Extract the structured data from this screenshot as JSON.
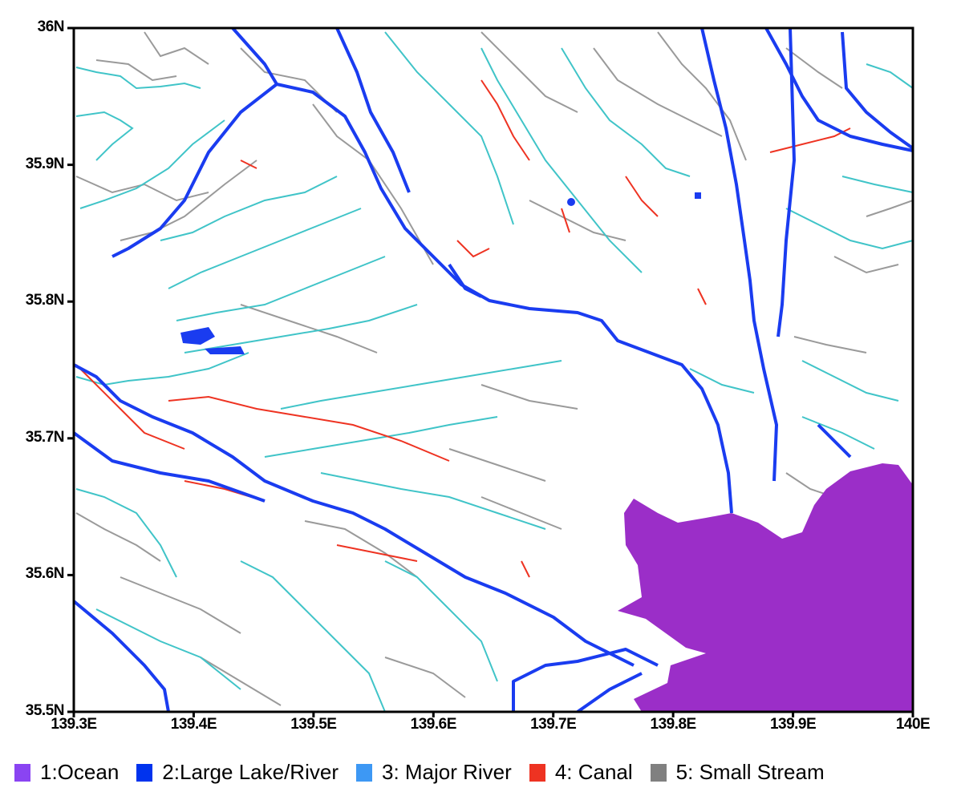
{
  "chart_data": {
    "type": "map",
    "xlim": [
      139.3,
      140.0
    ],
    "ylim": [
      35.5,
      36.0
    ],
    "x_ticks": [
      139.3,
      139.4,
      139.5,
      139.6,
      139.7,
      139.8,
      139.9,
      140.0
    ],
    "x_tick_labels": [
      "139.3E",
      "139.4E",
      "139.5E",
      "139.6E",
      "139.7E",
      "139.8E",
      "139.9E",
      "140E"
    ],
    "y_ticks": [
      36.0,
      35.9,
      35.8,
      35.7,
      35.6,
      35.5
    ],
    "y_tick_labels": [
      "36N",
      "35.9N",
      "35.8N",
      "35.7N",
      "35.6N",
      "35.5N"
    ],
    "grid": false,
    "legend_placement": "bottom",
    "legend": [
      {
        "label": "1:Ocean",
        "color": "#8a44f2"
      },
      {
        "label": "2:Large Lake/River",
        "color": "#0033ee"
      },
      {
        "label": "3: Major River",
        "color": "#3d98f4"
      },
      {
        "label": "4: Canal",
        "color": "#ee3322"
      },
      {
        "label": "5: Small Stream",
        "color": "#808080"
      }
    ],
    "map_colors": {
      "ocean": "#9b2ec8",
      "large_lake_river": "#1a3cf0",
      "major_river": "#40c4c8",
      "canal": "#ee3322",
      "small_stream": "#9a9a9a"
    }
  }
}
